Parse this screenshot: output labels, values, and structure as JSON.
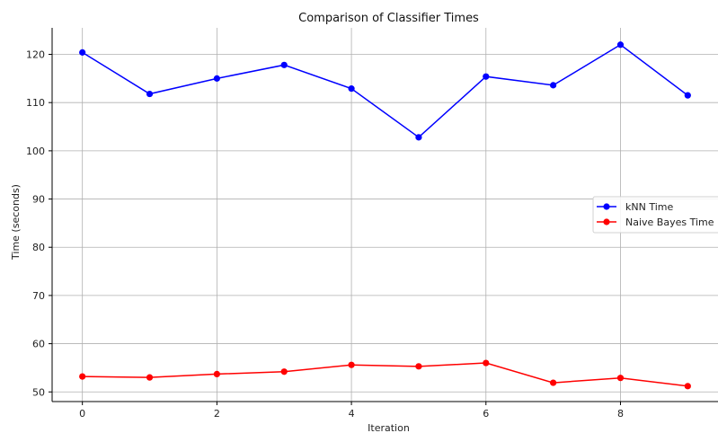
{
  "chart_data": {
    "type": "line",
    "title": "Comparison of Classifier Times",
    "xlabel": "Iteration",
    "ylabel": "Time (seconds)",
    "x": [
      0,
      1,
      2,
      3,
      4,
      5,
      6,
      7,
      8,
      9
    ],
    "x_ticks": [
      0,
      2,
      4,
      6,
      8
    ],
    "y_ticks": [
      50,
      60,
      70,
      80,
      90,
      100,
      110,
      120
    ],
    "xlim": [
      -0.45,
      9.45
    ],
    "ylim": [
      48,
      125.5
    ],
    "grid": true,
    "legend_position": "center-right",
    "series": [
      {
        "name": "kNN Time",
        "color": "#0000ff",
        "values": [
          120.4,
          111.8,
          115.0,
          117.8,
          112.9,
          102.8,
          115.4,
          113.6,
          122.0,
          111.5
        ]
      },
      {
        "name": "Naive Bayes Time",
        "color": "#ff0000",
        "values": [
          53.2,
          53.0,
          53.7,
          54.2,
          55.6,
          55.3,
          56.0,
          51.9,
          52.9,
          51.2
        ]
      }
    ]
  }
}
